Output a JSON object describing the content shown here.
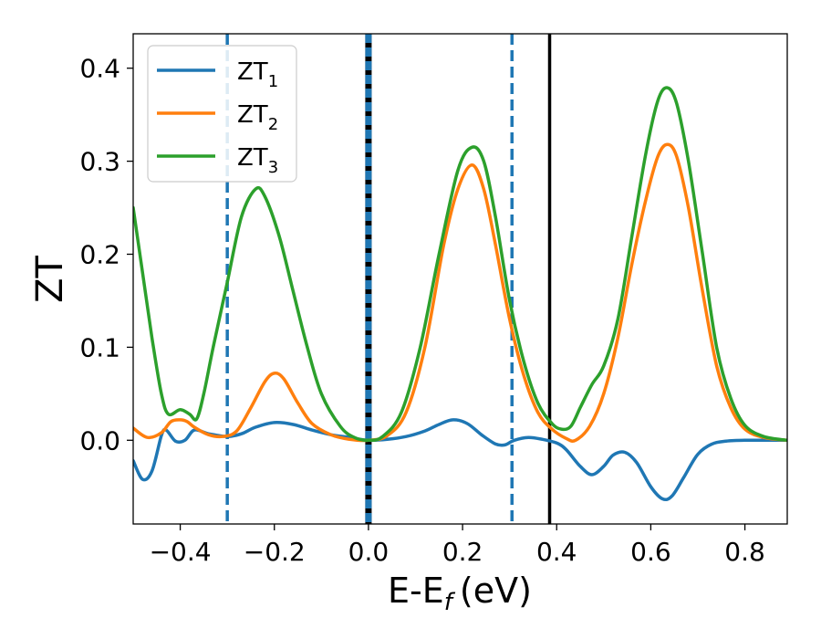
{
  "chart_data": {
    "type": "line",
    "xlabel": "E-E",
    "xlabel_sub": "f",
    "xlabel_unit": "(eV)",
    "ylabel": "ZT",
    "xlim": [
      -0.5,
      0.89
    ],
    "ylim": [
      -0.09,
      0.437
    ],
    "x_ticks": [
      -0.4,
      -0.2,
      0.0,
      0.2,
      0.4,
      0.6,
      0.8
    ],
    "x_tick_labels": [
      "−0.4",
      "−0.2",
      "0.0",
      "0.2",
      "0.4",
      "0.6",
      "0.8"
    ],
    "y_ticks": [
      0.0,
      0.1,
      0.2,
      0.3,
      0.4
    ],
    "y_tick_labels": [
      "0.0",
      "0.1",
      "0.2",
      "0.3",
      "0.4"
    ],
    "grid": false,
    "legend_position": "top-left",
    "series": [
      {
        "name": "ZT",
        "name_sub": "1",
        "color": "#1f77b4",
        "points": [
          [
            -0.5,
            -0.022
          ],
          [
            -0.48,
            -0.042
          ],
          [
            -0.46,
            -0.033
          ],
          [
            -0.44,
            0.005
          ],
          [
            -0.43,
            0.011
          ],
          [
            -0.41,
            -0.001
          ],
          [
            -0.39,
            0.0
          ],
          [
            -0.37,
            0.011
          ],
          [
            -0.34,
            0.007
          ],
          [
            -0.3,
            0.004
          ],
          [
            -0.27,
            0.007
          ],
          [
            -0.24,
            0.014
          ],
          [
            -0.2,
            0.019
          ],
          [
            -0.16,
            0.017
          ],
          [
            -0.12,
            0.011
          ],
          [
            -0.08,
            0.006
          ],
          [
            -0.04,
            0.003
          ],
          [
            0.0,
            0.0
          ],
          [
            0.04,
            0.001
          ],
          [
            0.08,
            0.004
          ],
          [
            0.12,
            0.01
          ],
          [
            0.15,
            0.017
          ],
          [
            0.18,
            0.022
          ],
          [
            0.21,
            0.018
          ],
          [
            0.24,
            0.006
          ],
          [
            0.27,
            -0.004
          ],
          [
            0.29,
            -0.005
          ],
          [
            0.31,
            0.0
          ],
          [
            0.34,
            0.003
          ],
          [
            0.37,
            0.001
          ],
          [
            0.4,
            -0.003
          ],
          [
            0.42,
            -0.01
          ],
          [
            0.45,
            -0.028
          ],
          [
            0.475,
            -0.037
          ],
          [
            0.5,
            -0.028
          ],
          [
            0.52,
            -0.016
          ],
          [
            0.545,
            -0.013
          ],
          [
            0.57,
            -0.024
          ],
          [
            0.6,
            -0.05
          ],
          [
            0.625,
            -0.063
          ],
          [
            0.645,
            -0.06
          ],
          [
            0.67,
            -0.04
          ],
          [
            0.7,
            -0.015
          ],
          [
            0.73,
            -0.004
          ],
          [
            0.76,
            -0.001
          ],
          [
            0.8,
            0.0
          ],
          [
            0.89,
            0.0
          ]
        ]
      },
      {
        "name": "ZT",
        "name_sub": "2",
        "color": "#ff7f0e",
        "points": [
          [
            -0.5,
            0.013
          ],
          [
            -0.47,
            0.003
          ],
          [
            -0.44,
            0.008
          ],
          [
            -0.42,
            0.02
          ],
          [
            -0.4,
            0.022
          ],
          [
            -0.385,
            0.02
          ],
          [
            -0.37,
            0.014
          ],
          [
            -0.34,
            0.006
          ],
          [
            -0.31,
            0.004
          ],
          [
            -0.28,
            0.01
          ],
          [
            -0.25,
            0.035
          ],
          [
            -0.22,
            0.063
          ],
          [
            -0.2,
            0.072
          ],
          [
            -0.18,
            0.066
          ],
          [
            -0.15,
            0.04
          ],
          [
            -0.12,
            0.018
          ],
          [
            -0.08,
            0.006
          ],
          [
            -0.04,
            0.001
          ],
          [
            0.0,
            0.0
          ],
          [
            0.04,
            0.005
          ],
          [
            0.08,
            0.03
          ],
          [
            0.12,
            0.1
          ],
          [
            0.16,
            0.21
          ],
          [
            0.19,
            0.27
          ],
          [
            0.22,
            0.296
          ],
          [
            0.245,
            0.27
          ],
          [
            0.27,
            0.21
          ],
          [
            0.3,
            0.13
          ],
          [
            0.33,
            0.07
          ],
          [
            0.36,
            0.03
          ],
          [
            0.39,
            0.012
          ],
          [
            0.42,
            0.002
          ],
          [
            0.44,
            0.0
          ],
          [
            0.47,
            0.015
          ],
          [
            0.5,
            0.05
          ],
          [
            0.53,
            0.11
          ],
          [
            0.56,
            0.19
          ],
          [
            0.59,
            0.26
          ],
          [
            0.615,
            0.305
          ],
          [
            0.635,
            0.318
          ],
          [
            0.655,
            0.305
          ],
          [
            0.68,
            0.25
          ],
          [
            0.71,
            0.16
          ],
          [
            0.74,
            0.08
          ],
          [
            0.77,
            0.035
          ],
          [
            0.8,
            0.012
          ],
          [
            0.84,
            0.003
          ],
          [
            0.89,
            0.0
          ]
        ]
      },
      {
        "name": "ZT",
        "name_sub": "3",
        "color": "#2ca02c",
        "points": [
          [
            -0.5,
            0.25
          ],
          [
            -0.48,
            0.18
          ],
          [
            -0.46,
            0.11
          ],
          [
            -0.44,
            0.05
          ],
          [
            -0.425,
            0.028
          ],
          [
            -0.4,
            0.033
          ],
          [
            -0.38,
            0.028
          ],
          [
            -0.365,
            0.023
          ],
          [
            -0.35,
            0.05
          ],
          [
            -0.33,
            0.1
          ],
          [
            -0.3,
            0.17
          ],
          [
            -0.27,
            0.24
          ],
          [
            -0.24,
            0.27
          ],
          [
            -0.22,
            0.262
          ],
          [
            -0.19,
            0.22
          ],
          [
            -0.16,
            0.16
          ],
          [
            -0.13,
            0.1
          ],
          [
            -0.1,
            0.05
          ],
          [
            -0.06,
            0.015
          ],
          [
            -0.03,
            0.003
          ],
          [
            0.0,
            0.0
          ],
          [
            0.03,
            0.004
          ],
          [
            0.07,
            0.03
          ],
          [
            0.11,
            0.1
          ],
          [
            0.15,
            0.2
          ],
          [
            0.19,
            0.29
          ],
          [
            0.22,
            0.315
          ],
          [
            0.245,
            0.3
          ],
          [
            0.27,
            0.24
          ],
          [
            0.3,
            0.15
          ],
          [
            0.33,
            0.085
          ],
          [
            0.36,
            0.04
          ],
          [
            0.39,
            0.018
          ],
          [
            0.41,
            0.012
          ],
          [
            0.43,
            0.015
          ],
          [
            0.45,
            0.035
          ],
          [
            0.475,
            0.06
          ],
          [
            0.5,
            0.08
          ],
          [
            0.53,
            0.13
          ],
          [
            0.56,
            0.22
          ],
          [
            0.59,
            0.31
          ],
          [
            0.615,
            0.365
          ],
          [
            0.635,
            0.379
          ],
          [
            0.655,
            0.362
          ],
          [
            0.68,
            0.3
          ],
          [
            0.71,
            0.2
          ],
          [
            0.74,
            0.1
          ],
          [
            0.77,
            0.045
          ],
          [
            0.8,
            0.016
          ],
          [
            0.84,
            0.004
          ],
          [
            0.89,
            0.0
          ]
        ]
      }
    ],
    "vertical_lines": [
      {
        "x": -0.3,
        "style": "dashed",
        "color": "#1f77b4",
        "width": 3.5
      },
      {
        "x": 0.0,
        "style": "solid",
        "color": "#000000",
        "width": 7
      },
      {
        "x": 0.0,
        "style": "dashed",
        "color": "#1f77b4",
        "width": 7
      },
      {
        "x": 0.305,
        "style": "dashed",
        "color": "#1f77b4",
        "width": 3.5
      },
      {
        "x": 0.385,
        "style": "solid",
        "color": "#000000",
        "width": 3.5
      }
    ]
  }
}
